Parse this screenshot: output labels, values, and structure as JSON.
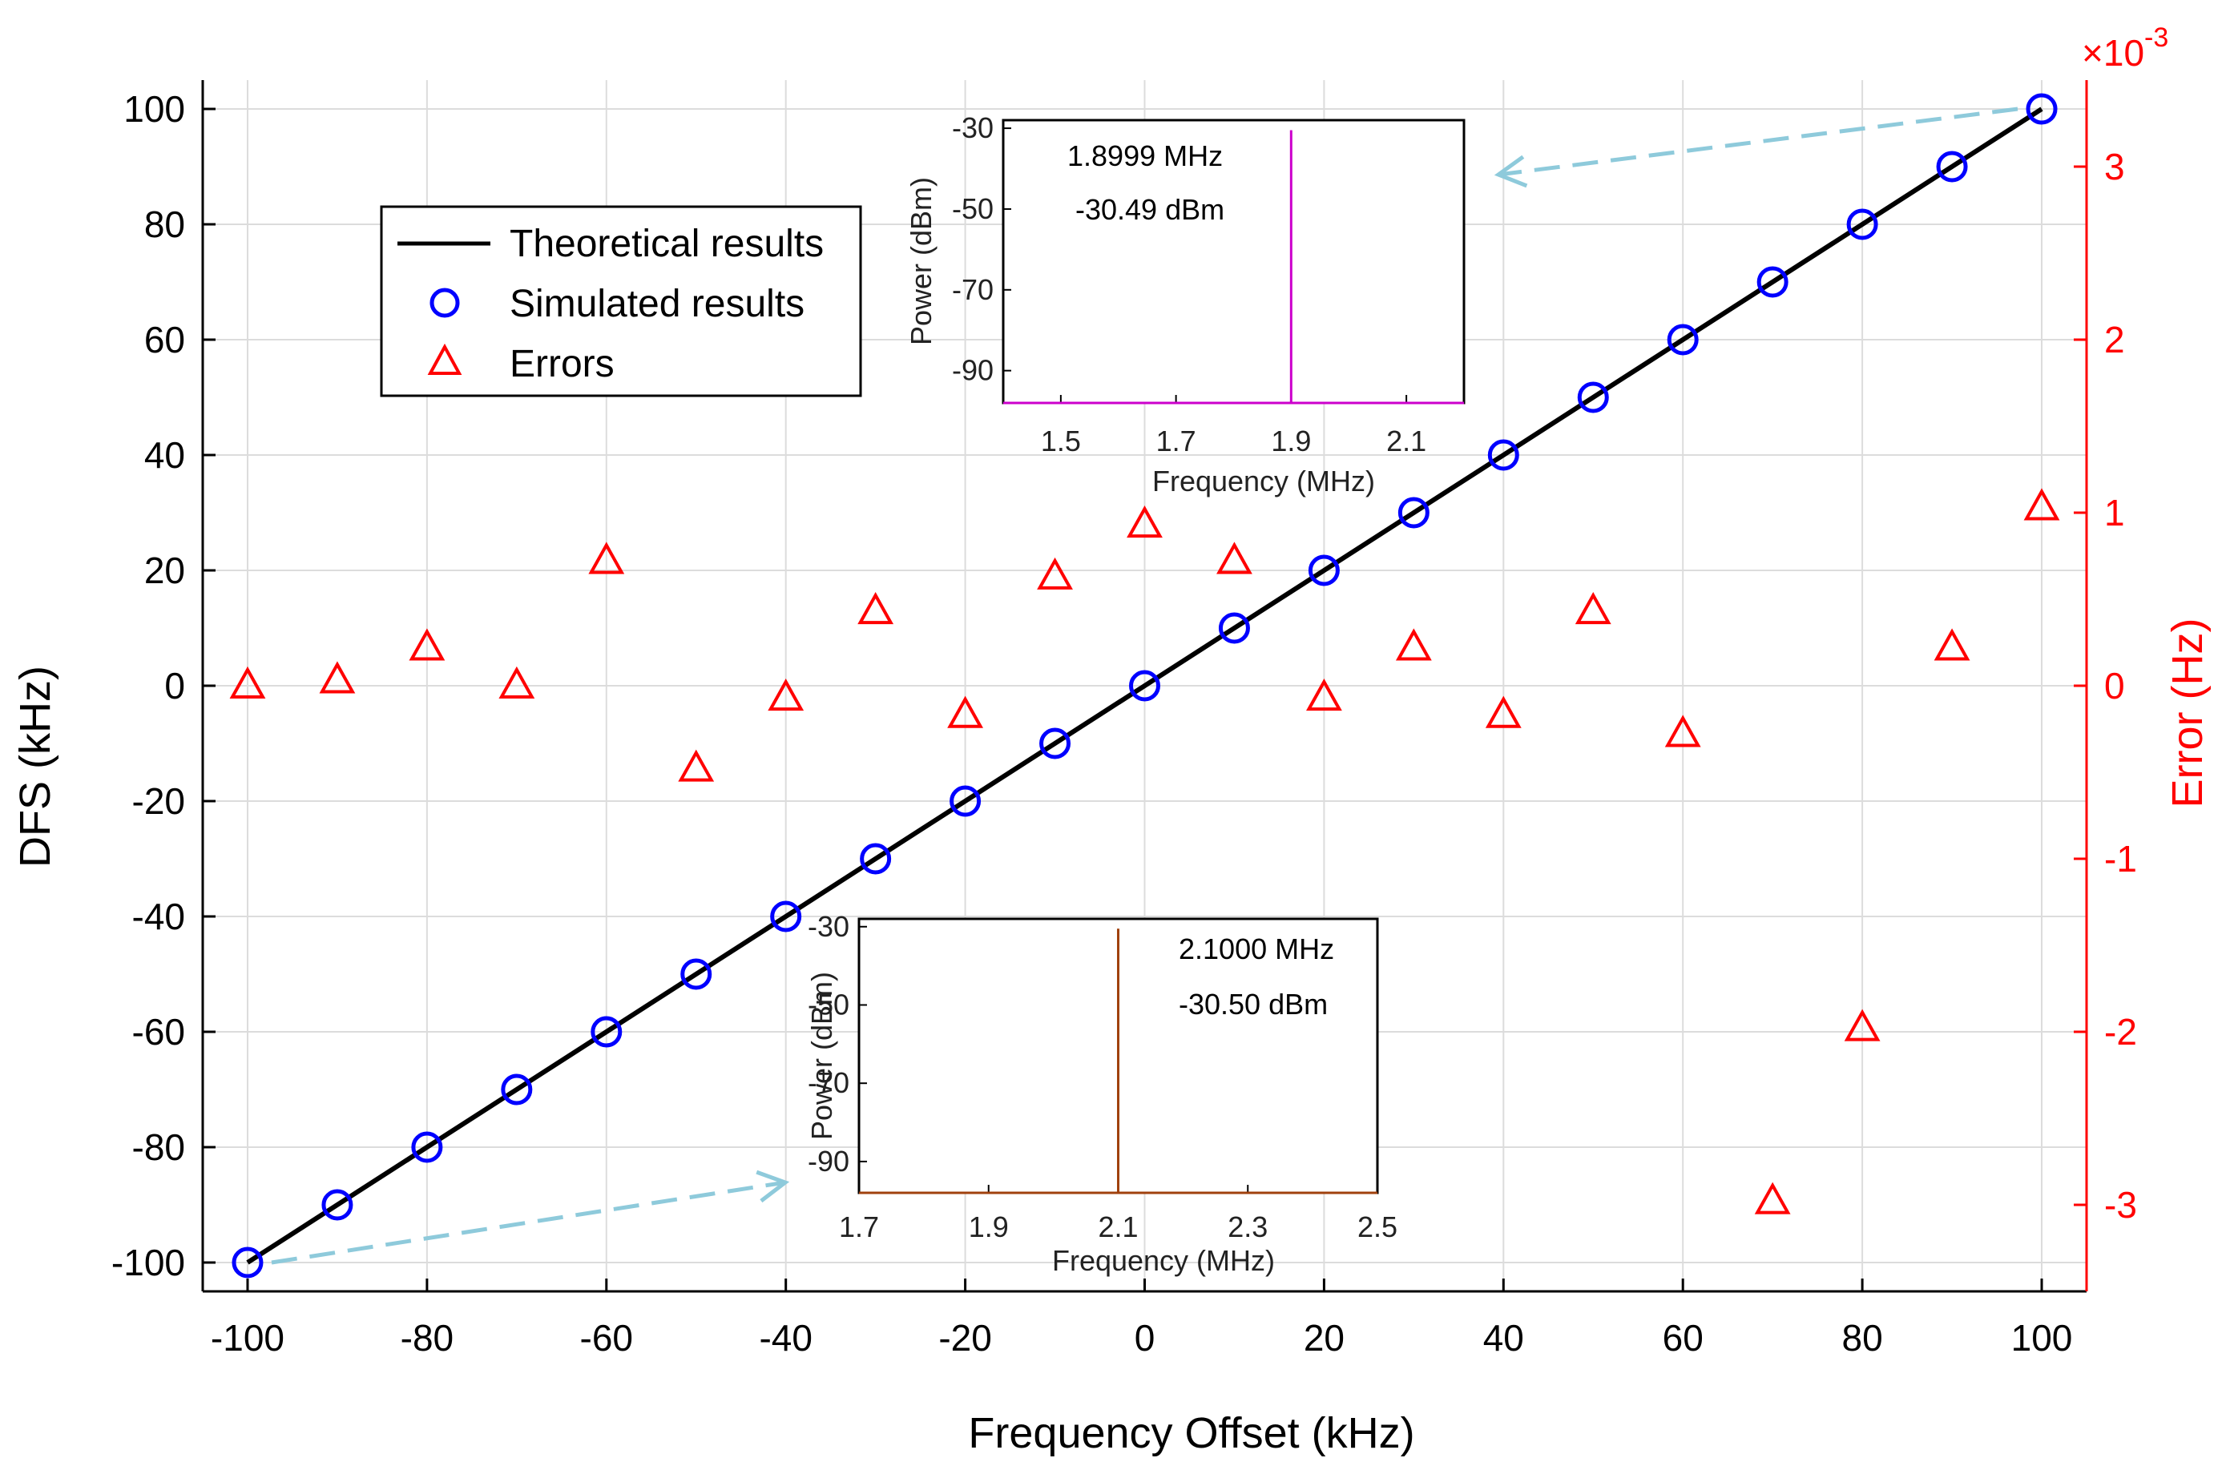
{
  "chart_data": {
    "type": "scatter",
    "xlabel": "Frequency Offset (kHz)",
    "ylabel": "DFS (kHz)",
    "y2label": "Error (Hz)",
    "y2_exponent": "×10",
    "y2_exponent_power": "-3",
    "xlim": [
      -105,
      105
    ],
    "ylim": [
      -105,
      105
    ],
    "y2lim": [
      -3.5,
      3.5
    ],
    "xticks": [
      -100,
      -80,
      -60,
      -40,
      -20,
      0,
      20,
      40,
      60,
      80,
      100
    ],
    "yticks": [
      -100,
      -80,
      -60,
      -40,
      -20,
      0,
      20,
      40,
      60,
      80,
      100
    ],
    "y2ticks": [
      -3,
      -2,
      -1,
      0,
      1,
      2,
      3
    ],
    "grid": true,
    "legend_position": "top-left",
    "legend": [
      "Theoretical results",
      "Simulated results",
      "Errors"
    ],
    "colors": {
      "theory": "#000000",
      "simulated": "#0000ff",
      "errors": "#ff0000",
      "right_axis": "#ff0000",
      "arrow": "#8ecadb",
      "inset1_line": "#cc00cc",
      "inset2_line": "#a0410d",
      "grid": "#dcdcdc"
    },
    "series": [
      {
        "name": "Theoretical results",
        "type": "line",
        "axis": "left",
        "x": [
          -100,
          100
        ],
        "y": [
          -100,
          100
        ]
      },
      {
        "name": "Simulated results",
        "type": "scatter",
        "marker": "circle",
        "axis": "left",
        "x": [
          -100,
          -90,
          -80,
          -70,
          -60,
          -50,
          -40,
          -30,
          -20,
          -10,
          0,
          10,
          20,
          30,
          40,
          50,
          60,
          70,
          80,
          90,
          100
        ],
        "y": [
          -100,
          -90,
          -80,
          -70,
          -60,
          -50,
          -40,
          -30,
          -20,
          -10,
          0,
          10,
          20,
          30,
          40,
          50,
          60,
          70,
          80,
          90,
          100
        ]
      },
      {
        "name": "Errors",
        "type": "scatter",
        "marker": "triangle",
        "axis": "right",
        "unit_scale": 0.001,
        "x": [
          -100,
          -90,
          -80,
          -70,
          -60,
          -50,
          -40,
          -30,
          -20,
          -10,
          0,
          10,
          20,
          30,
          40,
          50,
          60,
          70,
          80,
          90,
          100
        ],
        "y": [
          0.0,
          0.03,
          0.22,
          0.0,
          0.72,
          -0.48,
          -0.07,
          0.43,
          -0.17,
          0.63,
          0.93,
          0.72,
          -0.07,
          0.22,
          -0.17,
          0.43,
          -0.28,
          -2.98,
          -1.98,
          0.22,
          1.03
        ]
      }
    ],
    "insets": [
      {
        "id": "inset-top",
        "xlabel": "Frequency (MHz)",
        "ylabel": "Power (dBm)",
        "xlim": [
          1.4,
          2.2
        ],
        "ylim": [
          -98,
          -28
        ],
        "xticks": [
          1.5,
          1.7,
          1.9,
          2.1
        ],
        "yticks": [
          -30,
          -50,
          -70,
          -90
        ],
        "peak_x": 1.8999,
        "peak_y": -30.49,
        "floor_y": -98,
        "annotation_freq": "1.8999 MHz",
        "annotation_power": "-30.49 dBm",
        "arrow_from_point": [
          100,
          100
        ]
      },
      {
        "id": "inset-bottom",
        "xlabel": "Frequency (MHz)",
        "ylabel": "Power (dBm)",
        "xlim": [
          1.7,
          2.5
        ],
        "ylim": [
          -98,
          -28
        ],
        "xticks": [
          1.7,
          1.9,
          2.1,
          2.3,
          2.5
        ],
        "yticks": [
          -30,
          -50,
          -70,
          -90
        ],
        "peak_x": 2.1,
        "peak_y": -30.5,
        "floor_y": -98,
        "annotation_freq": "2.1000 MHz",
        "annotation_power": "-30.50 dBm",
        "arrow_from_point": [
          -100,
          -100
        ]
      }
    ]
  }
}
